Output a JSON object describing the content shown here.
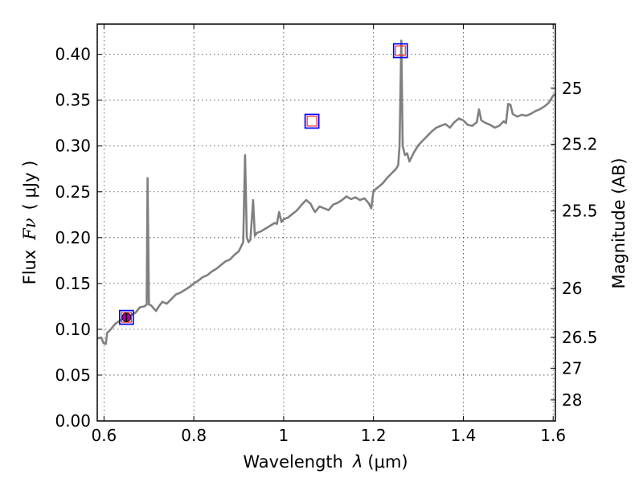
{
  "chart_data": {
    "type": "line",
    "xlabel_text": "Wavelength",
    "xlabel_symbol": "λ",
    "xlabel_unit": "(μm)",
    "ylabel_text": "Flux",
    "ylabel_symbol": "Fν",
    "ylabel_unit": "( μJy )",
    "y2label": "Magnitude (AB)",
    "xlim": [
      0.585,
      1.605
    ],
    "ylim": [
      0.0,
      0.433
    ],
    "grid": true,
    "xticks": [
      0.6,
      0.8,
      1.0,
      1.2,
      1.4,
      1.6
    ],
    "xtick_labels": [
      "0.6",
      "0.8",
      "1",
      "1.2",
      "1.4",
      "1.6"
    ],
    "yticks": [
      0.0,
      0.05,
      0.1,
      0.15,
      0.2,
      0.25,
      0.3,
      0.35,
      0.4
    ],
    "ytick_labels": [
      "0.00",
      "0.05",
      "0.10",
      "0.15",
      "0.20",
      "0.25",
      "0.30",
      "0.35",
      "0.40"
    ],
    "y2ticks": [
      25,
      25.2,
      25.5,
      26,
      26.5,
      27,
      28
    ],
    "y2tick_labels": [
      "25",
      "25.2",
      "25.5",
      "26",
      "26.5",
      "27",
      "28"
    ],
    "series": [
      {
        "name": "model spectrum",
        "color": "#808080",
        "points": [
          [
            0.585,
            0.09
          ],
          [
            0.594,
            0.091
          ],
          [
            0.599,
            0.085
          ],
          [
            0.604,
            0.084
          ],
          [
            0.607,
            0.096
          ],
          [
            0.615,
            0.1
          ],
          [
            0.625,
            0.106
          ],
          [
            0.64,
            0.111
          ],
          [
            0.655,
            0.114
          ],
          [
            0.67,
            0.118
          ],
          [
            0.68,
            0.124
          ],
          [
            0.69,
            0.125
          ],
          [
            0.695,
            0.127
          ],
          [
            0.697,
            0.265
          ],
          [
            0.7,
            0.127
          ],
          [
            0.705,
            0.126
          ],
          [
            0.712,
            0.122
          ],
          [
            0.716,
            0.12
          ],
          [
            0.722,
            0.125
          ],
          [
            0.73,
            0.13
          ],
          [
            0.74,
            0.128
          ],
          [
            0.75,
            0.133
          ],
          [
            0.76,
            0.138
          ],
          [
            0.77,
            0.14
          ],
          [
            0.78,
            0.143
          ],
          [
            0.79,
            0.146
          ],
          [
            0.8,
            0.15
          ],
          [
            0.81,
            0.153
          ],
          [
            0.82,
            0.157
          ],
          [
            0.83,
            0.159
          ],
          [
            0.84,
            0.163
          ],
          [
            0.85,
            0.166
          ],
          [
            0.86,
            0.17
          ],
          [
            0.87,
            0.174
          ],
          [
            0.88,
            0.176
          ],
          [
            0.89,
            0.181
          ],
          [
            0.9,
            0.185
          ],
          [
            0.905,
            0.19
          ],
          [
            0.91,
            0.195
          ],
          [
            0.914,
            0.29
          ],
          [
            0.918,
            0.2
          ],
          [
            0.922,
            0.195
          ],
          [
            0.926,
            0.198
          ],
          [
            0.932,
            0.241
          ],
          [
            0.936,
            0.202
          ],
          [
            0.94,
            0.205
          ],
          [
            0.95,
            0.207
          ],
          [
            0.96,
            0.21
          ],
          [
            0.97,
            0.213
          ],
          [
            0.98,
            0.216
          ],
          [
            0.985,
            0.215
          ],
          [
            0.99,
            0.228
          ],
          [
            0.995,
            0.217
          ],
          [
            1.0,
            0.22
          ],
          [
            1.01,
            0.222
          ],
          [
            1.02,
            0.226
          ],
          [
            1.03,
            0.23
          ],
          [
            1.04,
            0.236
          ],
          [
            1.05,
            0.241
          ],
          [
            1.06,
            0.237
          ],
          [
            1.065,
            0.232
          ],
          [
            1.07,
            0.228
          ],
          [
            1.08,
            0.234
          ],
          [
            1.09,
            0.232
          ],
          [
            1.1,
            0.23
          ],
          [
            1.11,
            0.236
          ],
          [
            1.12,
            0.238
          ],
          [
            1.13,
            0.241
          ],
          [
            1.14,
            0.245
          ],
          [
            1.15,
            0.242
          ],
          [
            1.16,
            0.244
          ],
          [
            1.17,
            0.241
          ],
          [
            1.18,
            0.243
          ],
          [
            1.19,
            0.237
          ],
          [
            1.195,
            0.232
          ],
          [
            1.2,
            0.251
          ],
          [
            1.21,
            0.255
          ],
          [
            1.22,
            0.259
          ],
          [
            1.23,
            0.265
          ],
          [
            1.24,
            0.27
          ],
          [
            1.25,
            0.275
          ],
          [
            1.255,
            0.279
          ],
          [
            1.258,
            0.3
          ],
          [
            1.262,
            0.415
          ],
          [
            1.265,
            0.3
          ],
          [
            1.27,
            0.29
          ],
          [
            1.275,
            0.292
          ],
          [
            1.28,
            0.283
          ],
          [
            1.29,
            0.293
          ],
          [
            1.3,
            0.301
          ],
          [
            1.31,
            0.306
          ],
          [
            1.32,
            0.311
          ],
          [
            1.33,
            0.316
          ],
          [
            1.34,
            0.32
          ],
          [
            1.35,
            0.322
          ],
          [
            1.36,
            0.324
          ],
          [
            1.37,
            0.32
          ],
          [
            1.38,
            0.326
          ],
          [
            1.39,
            0.33
          ],
          [
            1.4,
            0.328
          ],
          [
            1.41,
            0.323
          ],
          [
            1.42,
            0.322
          ],
          [
            1.43,
            0.326
          ],
          [
            1.435,
            0.34
          ],
          [
            1.44,
            0.328
          ],
          [
            1.45,
            0.325
          ],
          [
            1.46,
            0.323
          ],
          [
            1.47,
            0.32
          ],
          [
            1.48,
            0.322
          ],
          [
            1.49,
            0.327
          ],
          [
            1.495,
            0.325
          ],
          [
            1.5,
            0.346
          ],
          [
            1.505,
            0.345
          ],
          [
            1.51,
            0.335
          ],
          [
            1.52,
            0.332
          ],
          [
            1.53,
            0.334
          ],
          [
            1.54,
            0.333
          ],
          [
            1.55,
            0.335
          ],
          [
            1.56,
            0.338
          ],
          [
            1.57,
            0.34
          ],
          [
            1.58,
            0.343
          ],
          [
            1.59,
            0.347
          ],
          [
            1.6,
            0.355
          ],
          [
            1.605,
            0.356
          ]
        ]
      }
    ],
    "markers": [
      {
        "name": "model-square",
        "type": "square",
        "x": 0.65,
        "y": 0.113,
        "color": "#0000ff"
      },
      {
        "name": "model-square",
        "type": "square",
        "x": 1.063,
        "y": 0.327,
        "color": "#0000ff"
      },
      {
        "name": "model-square",
        "type": "square",
        "x": 1.26,
        "y": 0.404,
        "color": "#0000ff"
      },
      {
        "name": "observed-square",
        "type": "square-small",
        "x": 0.65,
        "y": 0.113,
        "color": "#ff0000"
      },
      {
        "name": "observed-square",
        "type": "square-small",
        "x": 1.063,
        "y": 0.327,
        "color": "#ff0000"
      },
      {
        "name": "observed-square",
        "type": "square-small",
        "x": 1.26,
        "y": 0.404,
        "color": "#ff0000"
      },
      {
        "name": "observed-point",
        "type": "circle",
        "x": 0.65,
        "y": 0.113,
        "color": "#aa00aa"
      }
    ]
  }
}
